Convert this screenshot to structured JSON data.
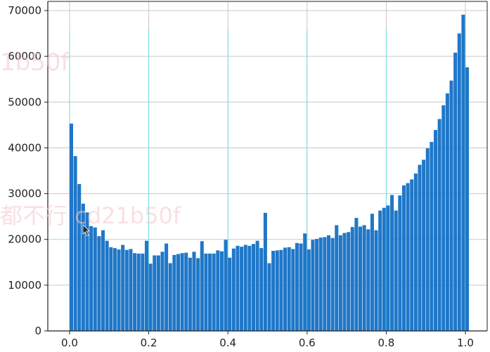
{
  "chart_data": {
    "type": "bar",
    "title": "",
    "xlabel": "",
    "ylabel": "",
    "xlim": [
      -0.055,
      1.055
    ],
    "ylim": [
      0,
      72000
    ],
    "grid": true,
    "bar_color": "#1f77c8",
    "grid_color": "#c8c8c8",
    "grid_highlight_color": "#5ee3ee",
    "xticks": [
      0.0,
      0.2,
      0.4,
      0.6,
      0.8,
      1.0
    ],
    "xtick_labels": [
      "0.0",
      "0.2",
      "0.4",
      "0.6",
      "0.8",
      "1.0"
    ],
    "yticks": [
      0,
      10000,
      20000,
      30000,
      40000,
      50000,
      60000,
      70000
    ],
    "ytick_labels": [
      "0",
      "10000",
      "20000",
      "30000",
      "40000",
      "50000",
      "60000",
      "70000"
    ],
    "bin_start": 0.0,
    "bin_width": 0.01,
    "values": [
      45300,
      38200,
      32100,
      27800,
      25900,
      22900,
      22600,
      20700,
      22000,
      19700,
      18300,
      18100,
      17800,
      18800,
      17700,
      17900,
      17000,
      16900,
      16900,
      19700,
      14700,
      16500,
      16500,
      17300,
      19100,
      14800,
      16600,
      16800,
      17000,
      17100,
      16000,
      17300,
      15900,
      19600,
      16900,
      16900,
      16900,
      17600,
      17400,
      19900,
      16000,
      18000,
      18600,
      18400,
      18800,
      18600,
      19000,
      19700,
      18100,
      25800,
      14800,
      17500,
      17600,
      17700,
      18200,
      18300,
      17900,
      19200,
      19100,
      21300,
      17800,
      19900,
      20100,
      20400,
      20500,
      20900,
      20300,
      23100,
      20900,
      21400,
      21600,
      22700,
      24700,
      22800,
      23100,
      22200,
      25600,
      22000,
      26300,
      26900,
      27400,
      29700,
      26300,
      29600,
      31800,
      32300,
      33100,
      34400,
      36300,
      37400,
      39900,
      41300,
      43900,
      46300,
      49300,
      51900,
      54700,
      60800,
      65000,
      69100,
      57600
    ]
  },
  "watermark": {
    "text_top": "1b50f",
    "text_mid": "都不行 cd21b50f"
  }
}
